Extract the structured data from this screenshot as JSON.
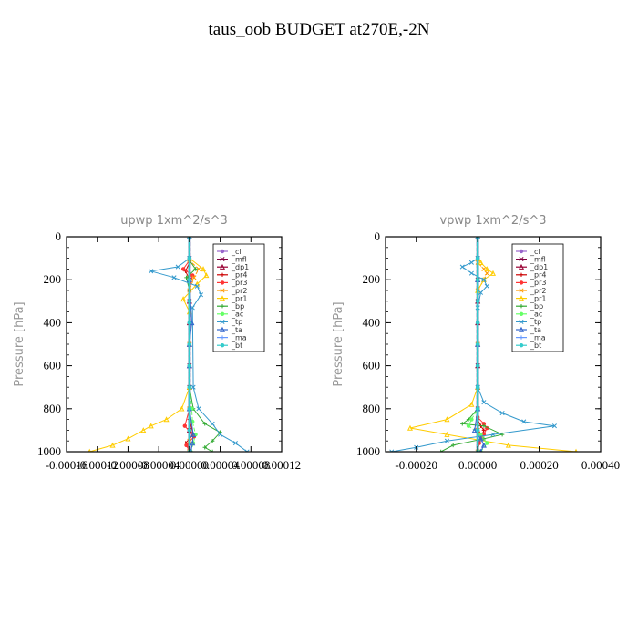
{
  "title": "taus_oob  BUDGET at270E,-2N",
  "chart_data": [
    {
      "type": "line",
      "title": "upwp   1xm^2/s^3",
      "xlabel": "",
      "ylabel": "Pressure [hPa]",
      "xlim": [
        -0.00016,
        0.00012
      ],
      "ylim": [
        1000,
        0
      ],
      "xticks": [
        -0.00016,
        -0.00012,
        -8e-05,
        -4e-05,
        0.0,
        4e-05,
        8e-05,
        0.00012
      ],
      "xtick_labels": [
        "-0.00016",
        "-0.00012",
        "-0.00008",
        "-0.00004",
        "0.00000",
        "0.00004",
        "0.00008",
        "0.00012"
      ],
      "yticks": [
        0,
        200,
        400,
        600,
        800,
        1000
      ],
      "ytick_labels": [
        "0",
        "200",
        "400",
        "600",
        "800",
        "1000"
      ],
      "legend_position": "top-right",
      "series": [
        {
          "name": "_cl",
          "color": "#9966cc",
          "x": [
            0,
            0,
            0,
            0,
            0,
            0,
            0,
            0,
            0,
            0,
            0
          ],
          "y": [
            0,
            100,
            200,
            300,
            400,
            500,
            600,
            700,
            800,
            900,
            1000
          ]
        },
        {
          "name": "_mfl",
          "color": "#800040",
          "x": [
            0,
            0,
            0,
            0,
            0,
            0,
            0,
            0,
            0,
            0,
            0
          ],
          "y": [
            0,
            100,
            200,
            300,
            400,
            500,
            600,
            700,
            800,
            900,
            1000
          ]
        },
        {
          "name": "_dp1",
          "color": "#990033",
          "x": [
            0,
            0,
            0,
            0,
            0,
            0,
            0,
            0,
            0,
            0,
            0
          ],
          "y": [
            0,
            100,
            200,
            300,
            400,
            500,
            600,
            700,
            800,
            900,
            1000
          ]
        },
        {
          "name": "_pr4",
          "color": "#cc0000",
          "x": [
            0,
            0,
            -5e-06,
            0,
            0,
            0,
            0,
            0,
            5e-06,
            -5e-06,
            0,
            0
          ],
          "y": [
            0,
            120,
            160,
            200,
            300,
            500,
            700,
            850,
            920,
            960,
            990,
            1000
          ]
        },
        {
          "name": "_pr3",
          "color": "#ff3333",
          "x": [
            0,
            0,
            -8e-06,
            4e-06,
            0,
            0,
            0,
            -6e-06,
            6e-06,
            -4e-06,
            0
          ],
          "y": [
            0,
            110,
            150,
            180,
            250,
            500,
            800,
            880,
            930,
            970,
            1000
          ]
        },
        {
          "name": "_pr2",
          "color": "#ff9900",
          "x": [
            0,
            0,
            1.2e-05,
            6e-06,
            0,
            0,
            0,
            0,
            0
          ],
          "y": [
            0,
            110,
            150,
            190,
            250,
            500,
            800,
            950,
            1000
          ]
        },
        {
          "name": "_pr1",
          "color": "#ffcc00",
          "x": [
            0,
            0,
            1.8e-05,
            2.2e-05,
            1e-05,
            -8e-06,
            0,
            0,
            -1e-05,
            -3e-05,
            -5e-05,
            -6e-05,
            -8e-05,
            -0.0001,
            -0.00013
          ],
          "y": [
            0,
            100,
            150,
            180,
            220,
            290,
            350,
            700,
            800,
            850,
            880,
            900,
            940,
            970,
            1000
          ]
        },
        {
          "name": "_bp",
          "color": "#33aa33",
          "x": [
            0,
            0,
            8e-06,
            -4e-06,
            0,
            0,
            0,
            5e-06,
            2e-05,
            4e-05,
            3e-05,
            2e-05,
            3e-05
          ],
          "y": [
            0,
            110,
            150,
            190,
            250,
            500,
            700,
            800,
            870,
            910,
            950,
            980,
            1000
          ]
        },
        {
          "name": "_ac",
          "color": "#66ff66",
          "x": [
            0,
            0,
            0,
            0,
            0,
            0,
            3e-06,
            4e-06,
            8e-06,
            5e-06,
            2e-06
          ],
          "y": [
            0,
            200,
            400,
            500,
            600,
            700,
            800,
            860,
            920,
            960,
            1000
          ]
        },
        {
          "name": "_tp",
          "color": "#3399cc",
          "x": [
            0,
            0,
            -1.5e-05,
            -5e-05,
            -2e-05,
            1e-05,
            1.5e-05,
            4e-06,
            5e-06,
            1.2e-05,
            3e-05,
            4e-05,
            6e-05,
            7.5e-05
          ],
          "y": [
            0,
            100,
            140,
            160,
            190,
            230,
            270,
            330,
            700,
            800,
            870,
            920,
            960,
            1000
          ]
        },
        {
          "name": "_ta",
          "color": "#3366cc",
          "x": [
            0,
            0,
            3e-06,
            0,
            0,
            0,
            5e-06,
            4e-06,
            2e-06
          ],
          "y": [
            0,
            200,
            400,
            500,
            600,
            800,
            920,
            960,
            1000
          ]
        },
        {
          "name": "_ma",
          "color": "#6699ff",
          "x": [
            0,
            0,
            0,
            0,
            0,
            0,
            0,
            0,
            0,
            0,
            0
          ],
          "y": [
            0,
            100,
            200,
            300,
            400,
            500,
            600,
            700,
            800,
            900,
            1000
          ]
        },
        {
          "name": "_bt",
          "color": "#33cccc",
          "x": [
            0,
            0,
            0,
            0,
            0,
            0,
            0,
            0,
            0,
            0,
            0
          ],
          "y": [
            0,
            100,
            200,
            300,
            400,
            500,
            600,
            700,
            800,
            900,
            1000
          ]
        }
      ]
    },
    {
      "type": "line",
      "title": "vpwp   1xm^2/s^3",
      "xlabel": "",
      "ylabel": "Pressure [hPa]",
      "xlim": [
        -0.0003,
        0.0004
      ],
      "ylim": [
        1000,
        0
      ],
      "xticks": [
        -0.0002,
        0.0,
        0.0002,
        0.0004
      ],
      "xtick_labels": [
        "-0.00020",
        "0.00000",
        "0.00020",
        "0.00040"
      ],
      "yticks": [
        0,
        200,
        400,
        600,
        800,
        1000
      ],
      "ytick_labels": [
        "0",
        "200",
        "400",
        "600",
        "800",
        "1000"
      ],
      "legend_position": "top-right",
      "series": [
        {
          "name": "_cl",
          "color": "#9966cc",
          "x": [
            0,
            0,
            0,
            0,
            0,
            0,
            0,
            0,
            0,
            0,
            0
          ],
          "y": [
            0,
            100,
            200,
            300,
            400,
            500,
            600,
            700,
            800,
            900,
            1000
          ]
        },
        {
          "name": "_mfl",
          "color": "#800040",
          "x": [
            0,
            0,
            0,
            0,
            0,
            0,
            0,
            0,
            0,
            0,
            0
          ],
          "y": [
            0,
            100,
            200,
            300,
            400,
            500,
            600,
            700,
            800,
            900,
            1000
          ]
        },
        {
          "name": "_dp1",
          "color": "#990033",
          "x": [
            0,
            0,
            0,
            0,
            0,
            0,
            0,
            0,
            0,
            0,
            0
          ],
          "y": [
            0,
            100,
            200,
            300,
            400,
            500,
            600,
            700,
            800,
            900,
            1000
          ]
        },
        {
          "name": "_pr4",
          "color": "#cc0000",
          "x": [
            0,
            0,
            0,
            0,
            0,
            1e-05,
            2e-05,
            1.5e-05,
            5e-06,
            0
          ],
          "y": [
            0,
            200,
            500,
            800,
            850,
            880,
            900,
            920,
            960,
            1000
          ]
        },
        {
          "name": "_pr3",
          "color": "#ff3333",
          "x": [
            0,
            0,
            0,
            0,
            0,
            2e-05,
            3e-05,
            2e-05,
            5e-06,
            0
          ],
          "y": [
            0,
            200,
            500,
            800,
            840,
            870,
            890,
            920,
            960,
            1000
          ]
        },
        {
          "name": "_pr2",
          "color": "#ff9900",
          "x": [
            0,
            0,
            2e-05,
            3e-05,
            2e-05,
            0,
            0,
            0,
            0
          ],
          "y": [
            0,
            120,
            150,
            170,
            200,
            250,
            500,
            900,
            1000
          ]
        },
        {
          "name": "_pr1",
          "color": "#ffcc00",
          "x": [
            0,
            0,
            1e-05,
            3e-05,
            5e-05,
            2e-05,
            0,
            0,
            -2e-05,
            -0.0001,
            -0.00022,
            -0.0001,
            0.0001,
            0.00032
          ],
          "y": [
            0,
            100,
            120,
            150,
            170,
            200,
            250,
            700,
            780,
            850,
            890,
            920,
            970,
            1000
          ]
        },
        {
          "name": "_bp",
          "color": "#33aa33",
          "x": [
            0,
            0,
            0,
            0,
            -3e-05,
            -5e-05,
            2e-05,
            8e-05,
            2e-05,
            -8e-05,
            -0.00012
          ],
          "y": [
            0,
            200,
            500,
            800,
            850,
            870,
            880,
            920,
            940,
            970,
            1000
          ]
        },
        {
          "name": "_ac",
          "color": "#66ff66",
          "x": [
            0,
            0,
            0,
            0,
            -2e-05,
            -3e-05,
            1e-05,
            3e-05,
            1e-05
          ],
          "y": [
            0,
            200,
            500,
            800,
            850,
            880,
            920,
            960,
            1000
          ]
        },
        {
          "name": "_tp",
          "color": "#3399cc",
          "x": [
            0,
            0,
            -2e-05,
            -5e-05,
            -2e-05,
            2e-05,
            3e-05,
            1e-05,
            0,
            0,
            2e-05,
            8e-05,
            0.00015,
            0.00025,
            5e-05,
            -0.0001,
            -0.0002,
            -0.00028
          ],
          "y": [
            0,
            100,
            120,
            140,
            170,
            200,
            230,
            260,
            330,
            700,
            770,
            820,
            860,
            880,
            920,
            950,
            980,
            1000
          ]
        },
        {
          "name": "_ta",
          "color": "#3366cc",
          "x": [
            0,
            0,
            0,
            0,
            -1e-05,
            1e-05,
            2e-05,
            1e-05
          ],
          "y": [
            0,
            200,
            500,
            800,
            900,
            940,
            970,
            1000
          ]
        },
        {
          "name": "_ma",
          "color": "#6699ff",
          "x": [
            0,
            0,
            0,
            0,
            0,
            0,
            0,
            0,
            0,
            0,
            0
          ],
          "y": [
            0,
            100,
            200,
            300,
            400,
            500,
            600,
            700,
            800,
            900,
            1000
          ]
        },
        {
          "name": "_bt",
          "color": "#33cccc",
          "x": [
            0,
            0,
            0,
            0,
            0,
            0,
            0,
            0,
            0,
            0,
            0
          ],
          "y": [
            0,
            100,
            200,
            300,
            400,
            500,
            600,
            700,
            800,
            900,
            1000
          ]
        }
      ]
    }
  ]
}
